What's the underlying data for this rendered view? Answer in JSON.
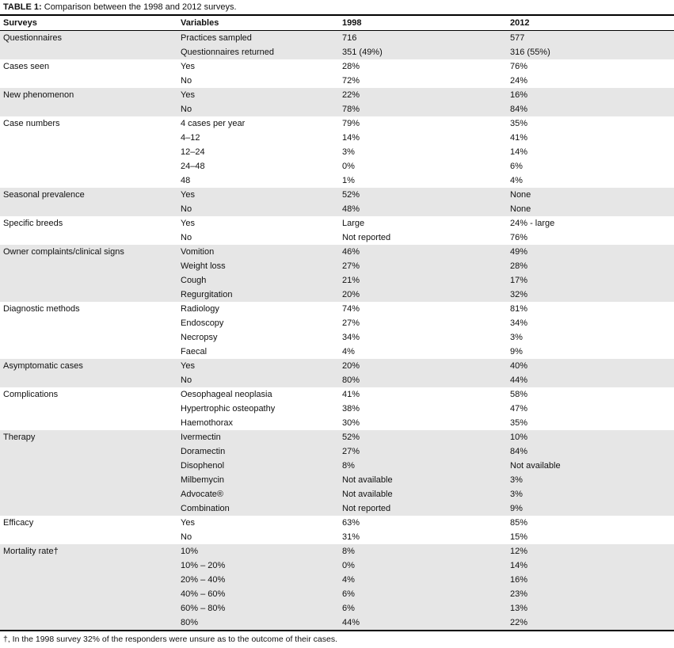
{
  "title": {
    "label": "TABLE 1:",
    "text": "Comparison between the 1998 and 2012 surveys."
  },
  "columns": [
    "Surveys",
    "Variables",
    "1998",
    "2012"
  ],
  "groups": [
    {
      "survey": "Questionnaires",
      "rows": [
        [
          "Practices sampled",
          "716",
          "577"
        ],
        [
          "Questionnaires returned",
          "351 (49%)",
          "316 (55%)"
        ]
      ]
    },
    {
      "survey": "Cases seen",
      "rows": [
        [
          "Yes",
          "28%",
          "76%"
        ],
        [
          "No",
          "72%",
          "24%"
        ]
      ]
    },
    {
      "survey": "New phenomenon",
      "rows": [
        [
          "Yes",
          "22%",
          "16%"
        ],
        [
          "No",
          "78%",
          "84%"
        ]
      ]
    },
    {
      "survey": "Case numbers",
      "rows": [
        [
          "4 cases per year",
          "79%",
          "35%"
        ],
        [
          "4–12",
          "14%",
          "41%"
        ],
        [
          "12–24",
          "3%",
          "14%"
        ],
        [
          "24–48",
          "0%",
          "6%"
        ],
        [
          "48",
          "1%",
          "4%"
        ]
      ]
    },
    {
      "survey": "Seasonal prevalence",
      "rows": [
        [
          "Yes",
          "52%",
          "None"
        ],
        [
          "No",
          "48%",
          "None"
        ]
      ]
    },
    {
      "survey": "Specific breeds",
      "rows": [
        [
          "Yes",
          "Large",
          "24% - large"
        ],
        [
          "No",
          "Not reported",
          "76%"
        ]
      ]
    },
    {
      "survey": "Owner complaints/clinical signs",
      "rows": [
        [
          "Vomition",
          "46%",
          "49%"
        ],
        [
          "Weight loss",
          "27%",
          "28%"
        ],
        [
          "Cough",
          "21%",
          "17%"
        ],
        [
          "Regurgitation",
          "20%",
          "32%"
        ]
      ]
    },
    {
      "survey": "Diagnostic methods",
      "rows": [
        [
          "Radiology",
          "74%",
          "81%"
        ],
        [
          "Endoscopy",
          "27%",
          "34%"
        ],
        [
          "Necropsy",
          "34%",
          "3%"
        ],
        [
          "Faecal",
          "4%",
          "9%"
        ]
      ]
    },
    {
      "survey": "Asymptomatic cases",
      "rows": [
        [
          "Yes",
          "20%",
          "40%"
        ],
        [
          "No",
          "80%",
          "44%"
        ]
      ]
    },
    {
      "survey": "Complications",
      "rows": [
        [
          "Oesophageal neoplasia",
          "41%",
          "58%"
        ],
        [
          "Hypertrophic osteopathy",
          "38%",
          "47%"
        ],
        [
          "Haemothorax",
          "30%",
          "35%"
        ]
      ]
    },
    {
      "survey": "Therapy",
      "rows": [
        [
          "Ivermectin",
          "52%",
          "10%"
        ],
        [
          "Doramectin",
          "27%",
          "84%"
        ],
        [
          "Disophenol",
          "8%",
          "Not available"
        ],
        [
          "Milbemycin",
          "Not available",
          "3%"
        ],
        [
          "Advocate®",
          "Not available",
          "3%"
        ],
        [
          "Combination",
          "Not reported",
          "9%"
        ]
      ]
    },
    {
      "survey": "Efficacy",
      "rows": [
        [
          "Yes",
          "63%",
          "85%"
        ],
        [
          "No",
          "31%",
          "15%"
        ]
      ]
    },
    {
      "survey": "Mortality rate†",
      "rows": [
        [
          "10%",
          "8%",
          "12%"
        ],
        [
          "10% – 20%",
          "0%",
          "14%"
        ],
        [
          "20% – 40%",
          "4%",
          "16%"
        ],
        [
          "40% – 60%",
          "6%",
          "23%"
        ],
        [
          "60% – 80%",
          "6%",
          "13%"
        ],
        [
          "80%",
          "44%",
          "22%"
        ]
      ]
    }
  ],
  "footnote": "†, In the 1998 survey 32% of the responders were unsure as to the outcome of their cases.",
  "colors": {
    "shaded_row": "#e6e6e6",
    "rule": "#000000",
    "text": "#111111"
  }
}
